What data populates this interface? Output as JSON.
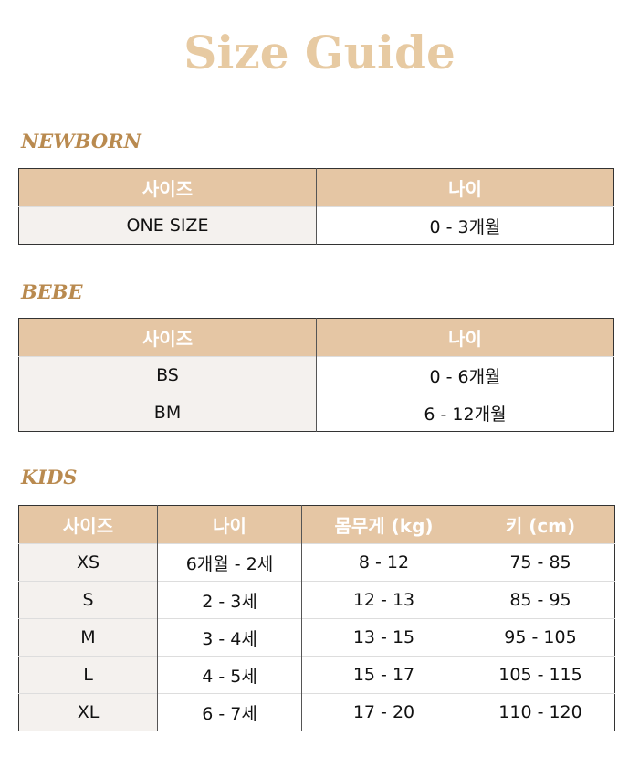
{
  "title": "Size Guide",
  "colors": {
    "header_bg": "#e5c6a4",
    "title": "#e7caa2",
    "section": "#b98a4f",
    "size_col_bg": "#f4f1ee"
  },
  "newborn": {
    "label": "NEWBORN",
    "headers": [
      "사이즈",
      "나이"
    ],
    "rows": [
      [
        "ONE SIZE",
        "0 - 3개월"
      ]
    ]
  },
  "bebe": {
    "label": "BEBE",
    "headers": [
      "사이즈",
      "나이"
    ],
    "rows": [
      [
        "BS",
        "0 - 6개월"
      ],
      [
        "BM",
        "6 - 12개월"
      ]
    ]
  },
  "kids": {
    "label": "KIDS",
    "headers": [
      "사이즈",
      "나이",
      "몸무게 (kg)",
      "키 (cm)"
    ],
    "rows": [
      [
        "XS",
        "6개월 - 2세",
        "8 - 12",
        "75 - 85"
      ],
      [
        "S",
        "2 - 3세",
        "12 - 13",
        "85 - 95"
      ],
      [
        "M",
        "3 - 4세",
        "13 - 15",
        "95 - 105"
      ],
      [
        "L",
        "4 - 5세",
        "15 - 17",
        "105 - 115"
      ],
      [
        "XL",
        "6 - 7세",
        "17 - 20",
        "110 - 120"
      ]
    ]
  }
}
